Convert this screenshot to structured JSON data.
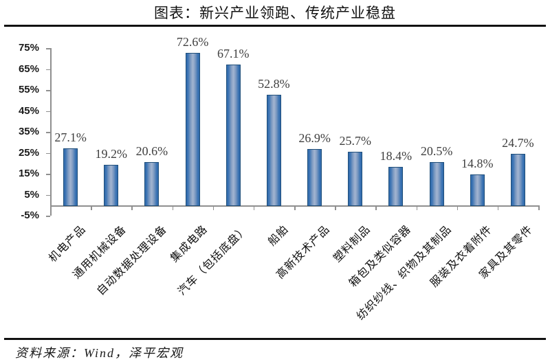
{
  "header": {
    "title": "图表：新兴产业领跑、传统产业稳盘"
  },
  "footer": {
    "source": "资料来源：Wind，泽平宏观"
  },
  "chart_data": {
    "type": "bar",
    "title": "图表：新兴产业领跑、传统产业稳盘",
    "categories": [
      "机电产品",
      "通用机械设备",
      "自动数据处理设备",
      "集成电路",
      "汽车（包括底盘）",
      "船舶",
      "高新技术产品",
      "塑料制品",
      "箱包及类似容器",
      "纺织纱线、织物及其制品",
      "服装及衣着附件",
      "家具及其零件"
    ],
    "values": [
      27.1,
      19.2,
      20.6,
      72.6,
      67.1,
      52.8,
      26.9,
      25.7,
      18.4,
      20.5,
      14.8,
      24.7
    ],
    "value_labels": [
      "27.1%",
      "19.2%",
      "20.6%",
      "72.6%",
      "67.1%",
      "52.8%",
      "26.9%",
      "25.7%",
      "18.4%",
      "20.5%",
      "14.8%",
      "24.7%"
    ],
    "xlabel": "",
    "ylabel": "",
    "ylim": [
      -5,
      75
    ],
    "ytick_values": [
      75,
      65,
      55,
      45,
      35,
      25,
      15,
      5,
      -5
    ],
    "ytick_labels": [
      "75%",
      "65%",
      "55%",
      "45%",
      "35%",
      "25%",
      "15%",
      "5%",
      "-5%"
    ],
    "x_label_rotation_deg": 45,
    "grid": false,
    "legend": "none",
    "source_note": "资料来源：Wind，泽平宏观",
    "colors": {
      "bar_edge": "#2F6AAD",
      "bar_mid": "#A3B5D1",
      "bar_border": "#1F4E79",
      "axis": "#8F8F8F",
      "value_label": "#3F3F3F",
      "rule": "#111111"
    }
  }
}
